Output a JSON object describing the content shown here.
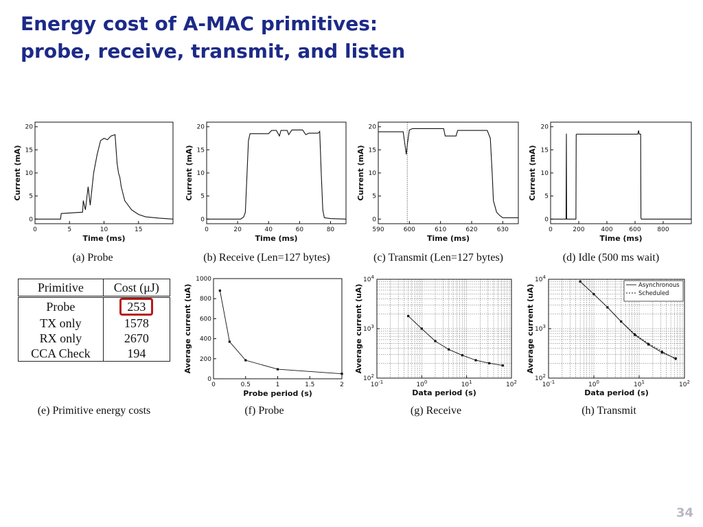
{
  "slide": {
    "title_line1": "Energy cost of A-MAC primitives:",
    "title_line2": "probe, receive, transmit, and listen",
    "page_number": "34"
  },
  "colors": {
    "title": "#1c2a88",
    "highlight": "#b81818",
    "trace": "#111111",
    "page_number": "#b8b8c4"
  },
  "table": {
    "headers": [
      "Primitive",
      "Cost (μJ)"
    ],
    "rows": [
      {
        "label": "Probe",
        "value": "253",
        "highlight": true
      },
      {
        "label": "TX only",
        "value": "1578"
      },
      {
        "label": "RX only",
        "value": "2670"
      },
      {
        "label": "CCA Check",
        "value": "194"
      }
    ],
    "caption": "(e)  Primitive energy costs"
  },
  "chart_data": [
    {
      "id": "a",
      "type": "line",
      "caption": "(a)  Probe",
      "xlabel": "Time (ms)",
      "ylabel": "Current (mA)",
      "xlim": [
        0,
        20
      ],
      "ylim": [
        -1,
        21
      ],
      "xticks": [
        0,
        5,
        10,
        15
      ],
      "yticks": [
        0,
        5,
        10,
        15,
        20
      ],
      "series": [
        {
          "x": [
            0,
            3.7,
            3.8,
            6.9,
            7.0,
            7.3,
            7.7,
            8.0,
            8.5,
            9.0,
            9.5,
            10.0,
            10.5,
            11.0,
            11.6,
            11.9,
            12.1,
            12.3,
            12.5,
            13.0,
            14.0,
            15.0,
            16.0,
            18.0,
            20.0
          ],
          "y": [
            0,
            0,
            1.2,
            1.5,
            4.0,
            2.0,
            7.0,
            3.0,
            10.0,
            14.0,
            17.0,
            17.5,
            17.2,
            18.0,
            18.3,
            12.0,
            10.0,
            9.0,
            7.0,
            4.0,
            2.0,
            1.0,
            0.5,
            0.2,
            0
          ]
        }
      ]
    },
    {
      "id": "b",
      "type": "line",
      "caption": "(b)  Receive (Len=127 bytes)",
      "xlabel": "Time (ms)",
      "ylabel": "Current (mA)",
      "xlim": [
        0,
        90
      ],
      "ylim": [
        -1,
        21
      ],
      "xticks": [
        0,
        20,
        40,
        60,
        80
      ],
      "yticks": [
        0,
        5,
        10,
        15,
        20
      ],
      "series": [
        {
          "x": [
            0,
            22,
            24,
            25,
            27,
            28,
            40,
            42,
            45,
            47,
            48,
            52,
            53,
            55,
            57,
            62,
            64,
            66,
            72,
            73,
            74,
            75,
            76,
            80,
            90
          ],
          "y": [
            0,
            0,
            0.5,
            1.5,
            17.0,
            18.5,
            18.5,
            19.2,
            19.2,
            18.0,
            19.2,
            19.2,
            18.3,
            19.3,
            19.3,
            19.3,
            18.3,
            18.6,
            18.6,
            19.0,
            10.0,
            2.0,
            0.3,
            0.1,
            0
          ]
        }
      ]
    },
    {
      "id": "c",
      "type": "line",
      "caption": "(c)  Transmit (Len=127 bytes)",
      "xlabel": "Time (ms)",
      "ylabel": "Current (mA)",
      "xlim": [
        590,
        635
      ],
      "ylim": [
        -1,
        21
      ],
      "xticks": [
        590,
        600,
        610,
        620,
        630
      ],
      "yticks": [
        0,
        5,
        10,
        15,
        20
      ],
      "series": [
        {
          "x": [
            590,
            598,
            599,
            599.3,
            600,
            601,
            602,
            611,
            611.5,
            615,
            615.5,
            616,
            625,
            626,
            626.6,
            627,
            628,
            629,
            630,
            635
          ],
          "y": [
            18.9,
            18.9,
            14.0,
            16.0,
            19.3,
            19.6,
            19.6,
            19.6,
            18.0,
            18.0,
            19.2,
            19.2,
            19.2,
            17.5,
            10.0,
            4.0,
            1.5,
            0.8,
            0.3,
            0.3
          ]
        }
      ],
      "annotations": [
        {
          "type": "vline",
          "x": 599.3
        }
      ]
    },
    {
      "id": "d",
      "type": "line",
      "caption": "(d)  Idle (500 ms wait)",
      "xlabel": "Time (ms)",
      "ylabel": "Current (mA)",
      "xlim": [
        0,
        1000
      ],
      "ylim": [
        -1,
        21
      ],
      "xticks": [
        0,
        200,
        400,
        600,
        800
      ],
      "yticks": [
        0,
        5,
        10,
        15,
        20
      ],
      "series": [
        {
          "x": [
            0,
            110,
            112,
            114,
            116,
            180,
            182,
            185,
            620,
            625,
            630,
            640,
            642,
            645,
            1000
          ],
          "y": [
            0,
            0,
            18.5,
            0.3,
            0,
            0,
            18.3,
            18.4,
            18.4,
            19.2,
            18.4,
            18.4,
            0.3,
            0,
            0
          ]
        }
      ]
    },
    {
      "id": "f",
      "type": "line",
      "caption": "(f)  Probe",
      "xlabel": "Probe period (s)",
      "ylabel": "Average current (uA)",
      "xlim": [
        0,
        2
      ],
      "ylim": [
        0,
        1000
      ],
      "xticks": [
        0,
        0.5,
        1,
        1.5,
        2
      ],
      "xticklabels": [
        "0",
        "0.5",
        "1",
        "1.5",
        "2"
      ],
      "yticks": [
        0,
        200,
        400,
        600,
        800,
        1000
      ],
      "series": [
        {
          "x": [
            0.1,
            0.25,
            0.5,
            1.0,
            2.0
          ],
          "y": [
            880,
            370,
            185,
            95,
            50
          ]
        }
      ]
    },
    {
      "id": "g",
      "type": "line",
      "caption": "(g)  Receive",
      "xlabel": "Data period (s)",
      "ylabel": "Average current (uA)",
      "xscale": "log",
      "yscale": "log",
      "xlim": [
        0.1,
        100
      ],
      "ylim": [
        100,
        10000
      ],
      "grid": true,
      "series": [
        {
          "x": [
            0.5,
            1,
            2,
            4,
            8,
            16,
            32,
            64
          ],
          "y": [
            1800,
            1000,
            560,
            380,
            290,
            230,
            200,
            180
          ]
        }
      ]
    },
    {
      "id": "h",
      "type": "line",
      "caption": "(h)  Transmit",
      "xlabel": "Data period (s)",
      "ylabel": "Average current (uA)",
      "xscale": "log",
      "yscale": "log",
      "xlim": [
        0.1,
        100
      ],
      "ylim": [
        100,
        10000
      ],
      "grid": true,
      "legend": "top-right",
      "series": [
        {
          "name": "Asynchronous",
          "x": [
            0.5,
            1,
            2,
            4,
            8,
            16,
            32,
            64
          ],
          "y": [
            9000,
            5000,
            2700,
            1400,
            750,
            480,
            330,
            250
          ]
        },
        {
          "name": "Scheduled",
          "x": [
            0.5,
            1,
            2,
            4,
            8,
            16,
            32,
            64
          ],
          "y": [
            9000,
            5000,
            2700,
            1400,
            780,
            500,
            350,
            240
          ]
        }
      ]
    }
  ]
}
